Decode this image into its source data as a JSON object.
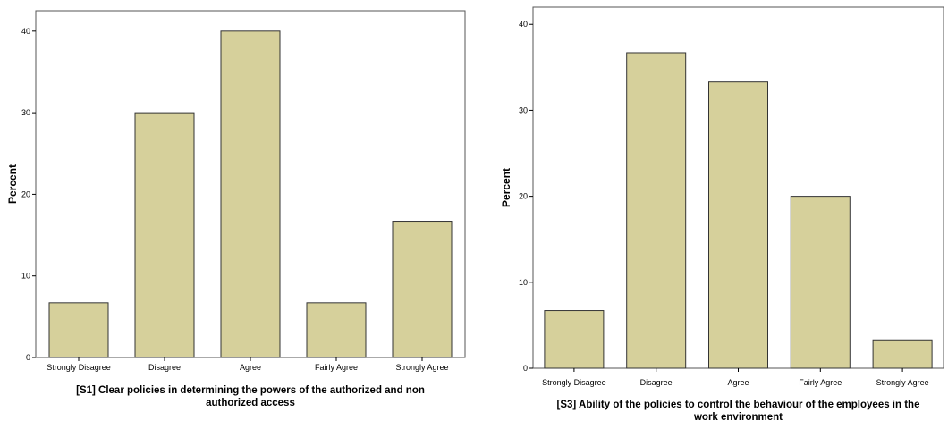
{
  "chart_data": [
    {
      "type": "bar",
      "title": "",
      "xlabel_lines": [
        "[S1] Clear policies in determining the powers of the authorized and non",
        "authorized access"
      ],
      "ylabel": "Percent",
      "categories": [
        "Strongly Disagree",
        "Disagree",
        "Agree",
        "Fairly Agree",
        "Strongly Agree"
      ],
      "values": [
        6.7,
        30.0,
        40.0,
        6.7,
        16.7
      ],
      "ylim": [
        0,
        42.5
      ],
      "yticks": [
        0,
        10,
        20,
        30,
        40
      ],
      "grid": false,
      "bar_color": "#d6d09b",
      "bar_edge_color": "#333333"
    },
    {
      "type": "bar",
      "title": "",
      "xlabel_lines": [
        "[S3] Ability of the policies to control the behaviour of the employees in the",
        "work environment"
      ],
      "ylabel": "Percent",
      "categories": [
        "Strongly Disagree",
        "Disagree",
        "Agree",
        "Fairly Agree",
        "Strongly Agree"
      ],
      "values": [
        6.7,
        36.7,
        33.3,
        20.0,
        3.3
      ],
      "ylim": [
        0,
        42
      ],
      "yticks": [
        0,
        10,
        20,
        30,
        40
      ],
      "grid": false,
      "bar_color": "#d6d09b",
      "bar_edge_color": "#333333"
    }
  ]
}
